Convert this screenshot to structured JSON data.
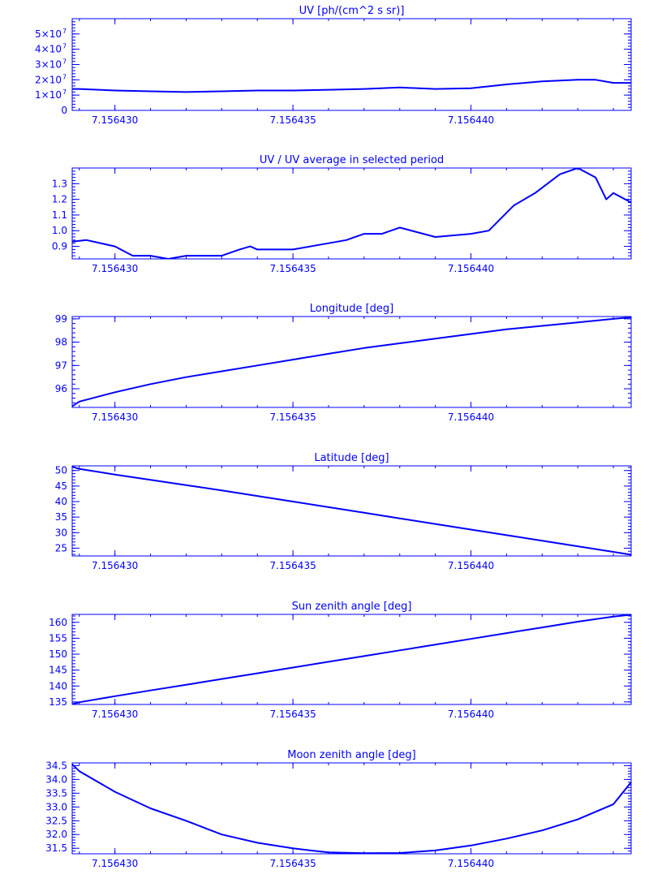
{
  "chart_data": [
    {
      "type": "line",
      "title": "UV [ph/(cm^2 s sr)]",
      "xlabel": "",
      "ylabel": "",
      "xlim": [
        7.1564288,
        7.1564445
      ],
      "ylim": [
        0,
        60000000.0
      ],
      "x_ticks": [
        7.15643,
        7.156435,
        7.15644
      ],
      "x_tick_labels": [
        "7.156430",
        "7.156435",
        "7.156440"
      ],
      "y_ticks": [
        0,
        10000000.0,
        20000000.0,
        30000000.0,
        40000000.0,
        50000000.0
      ],
      "y_tick_labels": [
        "0",
        "1×10",
        "2×10",
        "3×10",
        "4×10",
        "5×10"
      ],
      "y_tick_exponent": "7",
      "series": [
        {
          "x": [
            7.1564288,
            7.156429,
            7.15643,
            7.156431,
            7.156432,
            7.156433,
            7.156434,
            7.156435,
            7.156436,
            7.156437,
            7.156438,
            7.156439,
            7.15644,
            7.156441,
            7.156442,
            7.156443,
            7.1564435,
            7.156444,
            7.1564445
          ],
          "y": [
            14000000,
            14000000,
            13000000,
            12500000,
            12000000,
            12500000,
            13000000,
            13000000,
            13500000,
            14000000,
            15000000,
            14000000,
            14500000,
            17000000,
            19000000,
            20000000,
            20000000,
            18000000,
            18000000
          ]
        }
      ]
    },
    {
      "type": "line",
      "title": "UV / UV average in selected period",
      "xlabel": "",
      "ylabel": "",
      "xlim": [
        7.1564288,
        7.1564445
      ],
      "ylim": [
        0.82,
        1.4
      ],
      "x_ticks": [
        7.15643,
        7.156435,
        7.15644
      ],
      "x_tick_labels": [
        "7.156430",
        "7.156435",
        "7.156440"
      ],
      "y_ticks": [
        0.9,
        1.0,
        1.1,
        1.2,
        1.3
      ],
      "y_tick_labels": [
        "0.9",
        "1.0",
        "1.1",
        "1.2",
        "1.3"
      ],
      "series": [
        {
          "x": [
            7.1564288,
            7.1564292,
            7.15643,
            7.1564305,
            7.156431,
            7.1564315,
            7.156432,
            7.156433,
            7.1564335,
            7.1564338,
            7.156434,
            7.156435,
            7.156436,
            7.1564365,
            7.156437,
            7.1564375,
            7.156438,
            7.156439,
            7.15644,
            7.1564405,
            7.1564412,
            7.1564418,
            7.1564425,
            7.156443,
            7.1564435,
            7.1564438,
            7.156444,
            7.1564445
          ],
          "y": [
            0.93,
            0.94,
            0.9,
            0.84,
            0.84,
            0.82,
            0.84,
            0.84,
            0.88,
            0.9,
            0.88,
            0.88,
            0.92,
            0.94,
            0.98,
            0.98,
            1.02,
            0.96,
            0.98,
            1.0,
            1.16,
            1.24,
            1.36,
            1.4,
            1.34,
            1.2,
            1.24,
            1.18
          ]
        }
      ]
    },
    {
      "type": "line",
      "title": "Longitude [deg]",
      "xlabel": "",
      "ylabel": "",
      "xlim": [
        7.1564288,
        7.1564445
      ],
      "ylim": [
        95.2,
        99.1
      ],
      "x_ticks": [
        7.15643,
        7.156435,
        7.15644
      ],
      "x_tick_labels": [
        "7.156430",
        "7.156435",
        "7.156440"
      ],
      "y_ticks": [
        96,
        97,
        98,
        99
      ],
      "y_tick_labels": [
        "96",
        "97",
        "98",
        "99"
      ],
      "series": [
        {
          "x": [
            7.1564288,
            7.156429,
            7.15643,
            7.156431,
            7.156432,
            7.156433,
            7.156434,
            7.156435,
            7.156436,
            7.156437,
            7.156438,
            7.156439,
            7.15644,
            7.156441,
            7.156442,
            7.156443,
            7.156444,
            7.1564445
          ],
          "y": [
            95.25,
            95.45,
            95.85,
            96.2,
            96.5,
            96.75,
            97.0,
            97.25,
            97.5,
            97.75,
            97.95,
            98.15,
            98.35,
            98.55,
            98.7,
            98.85,
            99.0,
            99.07
          ]
        }
      ]
    },
    {
      "type": "line",
      "title": "Latitude [deg]",
      "xlabel": "",
      "ylabel": "",
      "xlim": [
        7.1564288,
        7.1564445
      ],
      "ylim": [
        22.5,
        51.5
      ],
      "x_ticks": [
        7.15643,
        7.156435,
        7.15644
      ],
      "x_tick_labels": [
        "7.156430",
        "7.156435",
        "7.156440"
      ],
      "y_ticks": [
        25,
        30,
        35,
        40,
        45,
        50
      ],
      "y_tick_labels": [
        "25",
        "30",
        "35",
        "40",
        "45",
        "50"
      ],
      "series": [
        {
          "x": [
            7.1564288,
            7.156429,
            7.15643,
            7.156431,
            7.156432,
            7.156433,
            7.156434,
            7.156435,
            7.156436,
            7.156437,
            7.156438,
            7.156439,
            7.15644,
            7.156441,
            7.156442,
            7.156443,
            7.156444,
            7.1564445
          ],
          "y": [
            51.2,
            50.5,
            48.7,
            47.0,
            45.3,
            43.6,
            41.8,
            40.0,
            38.2,
            36.4,
            34.6,
            32.8,
            31.0,
            29.2,
            27.4,
            25.6,
            23.8,
            22.9
          ]
        }
      ]
    },
    {
      "type": "line",
      "title": "Sun zenith angle [deg]",
      "xlabel": "",
      "ylabel": "",
      "xlim": [
        7.1564288,
        7.1564445
      ],
      "ylim": [
        134.2,
        162.5
      ],
      "x_ticks": [
        7.15643,
        7.156435,
        7.15644
      ],
      "x_tick_labels": [
        "7.156430",
        "7.156435",
        "7.156440"
      ],
      "y_ticks": [
        135,
        140,
        145,
        150,
        155,
        160
      ],
      "y_tick_labels": [
        "135",
        "140",
        "145",
        "150",
        "155",
        "160"
      ],
      "series": [
        {
          "x": [
            7.1564288,
            7.156429,
            7.15643,
            7.156431,
            7.156432,
            7.156433,
            7.156434,
            7.156435,
            7.156436,
            7.156437,
            7.156438,
            7.156439,
            7.15644,
            7.156441,
            7.156442,
            7.156443,
            7.156444,
            7.1564445
          ],
          "y": [
            134.3,
            134.9,
            136.8,
            138.6,
            140.4,
            142.2,
            144.0,
            145.8,
            147.6,
            149.4,
            151.2,
            153.0,
            154.8,
            156.6,
            158.4,
            160.2,
            161.8,
            162.4
          ]
        }
      ]
    },
    {
      "type": "line",
      "title": "Moon zenith angle [deg]",
      "xlabel": "",
      "ylabel": "",
      "xlim": [
        7.1564288,
        7.1564445
      ],
      "ylim": [
        31.3,
        34.6
      ],
      "x_ticks": [
        7.15643,
        7.156435,
        7.15644
      ],
      "x_tick_labels": [
        "7.156430",
        "7.156435",
        "7.156440"
      ],
      "y_ticks": [
        31.5,
        32.0,
        32.5,
        33.0,
        33.5,
        34.0,
        34.5
      ],
      "y_tick_labels": [
        "31.5",
        "32.0",
        "32.5",
        "33.0",
        "33.5",
        "34.0",
        "34.5"
      ],
      "series": [
        {
          "x": [
            7.1564288,
            7.156429,
            7.15643,
            7.156431,
            7.156432,
            7.156433,
            7.156434,
            7.156435,
            7.1564355,
            7.156436,
            7.156437,
            7.156438,
            7.156439,
            7.15644,
            7.156441,
            7.156442,
            7.156443,
            7.156444,
            7.1564445
          ],
          "y": [
            34.55,
            34.3,
            33.55,
            32.95,
            32.5,
            32.0,
            31.7,
            31.5,
            31.42,
            31.35,
            31.32,
            31.33,
            31.42,
            31.6,
            31.85,
            32.15,
            32.55,
            33.1,
            33.9
          ]
        }
      ]
    }
  ]
}
